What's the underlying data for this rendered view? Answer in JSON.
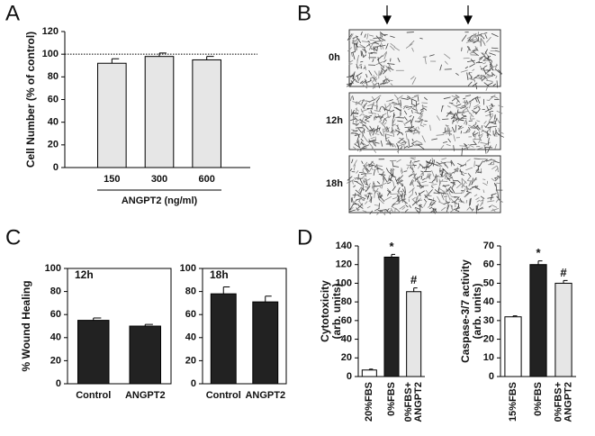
{
  "panel_labels": [
    "A",
    "B",
    "C",
    "D"
  ],
  "micrographs": {
    "labels": [
      "0h",
      "12h",
      "18h"
    ]
  },
  "chart_data": [
    {
      "type": "bar",
      "ylabel": "Cell Number (% of control)",
      "xlabel": "ANGPT2 (ng/ml)",
      "categories": [
        "150",
        "300",
        "600"
      ],
      "values": [
        92,
        98,
        95
      ],
      "errors": [
        4,
        3,
        3
      ],
      "color": "#e6e6e6",
      "ylim": [
        0,
        120
      ],
      "yticks": [
        0,
        20,
        40,
        60,
        80,
        100,
        120
      ],
      "reference_line": 100
    },
    {
      "type": "bar",
      "ylabel": "% Wound Healing",
      "annotation": "12h",
      "categories": [
        "Control",
        "ANGPT2"
      ],
      "values": [
        55,
        50
      ],
      "errors": [
        2,
        1.5
      ],
      "color": "#222222",
      "ylim": [
        0,
        100
      ],
      "yticks": [
        0,
        20,
        40,
        60,
        80,
        100
      ],
      "frame": true
    },
    {
      "type": "bar",
      "annotation": "18h",
      "categories": [
        "Control",
        "ANGPT2"
      ],
      "values": [
        78,
        71
      ],
      "errors": [
        6,
        5
      ],
      "color": "#222222",
      "ylim": [
        0,
        100
      ],
      "yticks": [
        0,
        20,
        40,
        60,
        80,
        100
      ],
      "frame": true
    },
    {
      "type": "bar",
      "ylabel": [
        "Cytotoxicity",
        "(arb. units)"
      ],
      "categories": [
        "20%FBS",
        "0%FBS",
        [
          "0%FBS+",
          "ANGPT2"
        ]
      ],
      "values": [
        7,
        128,
        91
      ],
      "errors": [
        1,
        3,
        4
      ],
      "colors": [
        "#ffffff",
        "#222222",
        "#e6e6e6"
      ],
      "value_annotations": [
        null,
        "*",
        "#"
      ],
      "ylim": [
        0,
        140
      ],
      "yticks": [
        0,
        20,
        40,
        60,
        80,
        100,
        120,
        140
      ],
      "rotate_categories": true
    },
    {
      "type": "bar",
      "ylabel": [
        "Caspase-3/7 activity",
        "(arb. units)"
      ],
      "categories": [
        "15%FBS",
        "0%FBS",
        [
          "0%FBS+",
          "ANGPT2"
        ]
      ],
      "values": [
        32,
        60,
        50
      ],
      "errors": [
        0.5,
        2,
        1.5
      ],
      "colors": [
        "#ffffff",
        "#222222",
        "#e6e6e6"
      ],
      "value_annotations": [
        null,
        "*",
        "#"
      ],
      "ylim": [
        0,
        70
      ],
      "yticks": [
        0,
        10,
        20,
        30,
        40,
        50,
        60,
        70
      ],
      "rotate_categories": true
    }
  ]
}
